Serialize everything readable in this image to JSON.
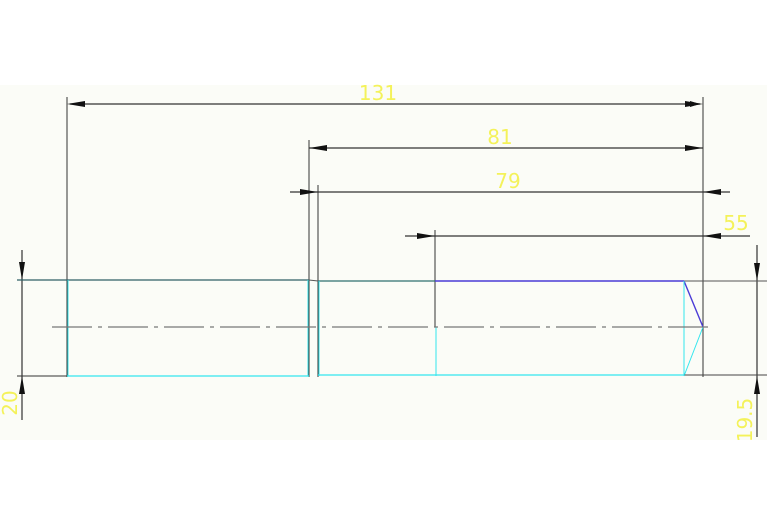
{
  "drawing": {
    "colors": {
      "dimension_text": "#f4f25a",
      "dimension_line": "#222222",
      "outline_cyan": "#33e6ee",
      "outline_blue": "#4a3bd6",
      "centerline": "#777777",
      "paper": "#fbfcf7"
    },
    "dimensions": {
      "overall_length": "131",
      "length_81": "81",
      "length_79": "79",
      "length_55": "55",
      "diameter_left": "20",
      "diameter_right": "19.5"
    }
  }
}
